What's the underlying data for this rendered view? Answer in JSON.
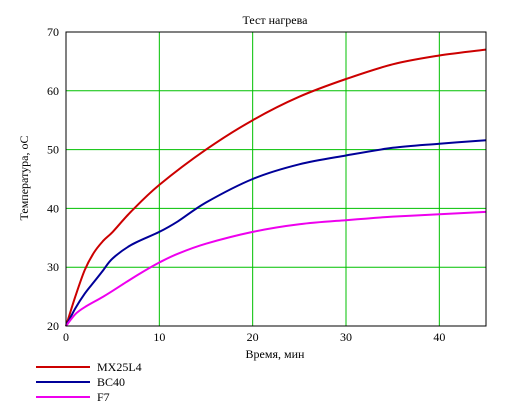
{
  "chart_data": {
    "type": "line",
    "title": "Тест нагрева",
    "xlabel": "Время, мин",
    "ylabel": "Температура, оС",
    "xlim": [
      0,
      45
    ],
    "ylim": [
      20,
      70
    ],
    "xticks": [
      0,
      10,
      20,
      30,
      40
    ],
    "yticks": [
      20,
      30,
      40,
      50,
      60,
      70
    ],
    "grid": true,
    "grid_color": "#00c000",
    "legend_position": "bottom-left",
    "series": [
      {
        "name": "MX25L4",
        "color": "#cc0000",
        "x": [
          0,
          1,
          2,
          3,
          4,
          5,
          7,
          10,
          15,
          20,
          25,
          30,
          35,
          40,
          45
        ],
        "y": [
          20,
          25,
          29.5,
          32.5,
          34.5,
          36,
          39.5,
          44,
          50,
          55,
          59,
          62,
          64.5,
          66,
          67
        ]
      },
      {
        "name": "BC40",
        "color": "#000099",
        "x": [
          0,
          1,
          2,
          3,
          4,
          5,
          7,
          10,
          12,
          15,
          20,
          25,
          30,
          35,
          40,
          45
        ],
        "y": [
          20,
          23,
          25.5,
          27.5,
          29.5,
          31.5,
          33.8,
          36,
          37.8,
          41,
          45,
          47.5,
          49,
          50.3,
          51,
          51.6
        ]
      },
      {
        "name": "F7",
        "color": "#ee00ee",
        "x": [
          0,
          1,
          2,
          4,
          6,
          8,
          10,
          12,
          15,
          20,
          25,
          30,
          35,
          40,
          45
        ],
        "y": [
          20,
          22,
          23.2,
          25,
          27,
          29,
          30.8,
          32.3,
          34,
          36,
          37.3,
          38,
          38.6,
          39,
          39.4
        ]
      }
    ]
  }
}
